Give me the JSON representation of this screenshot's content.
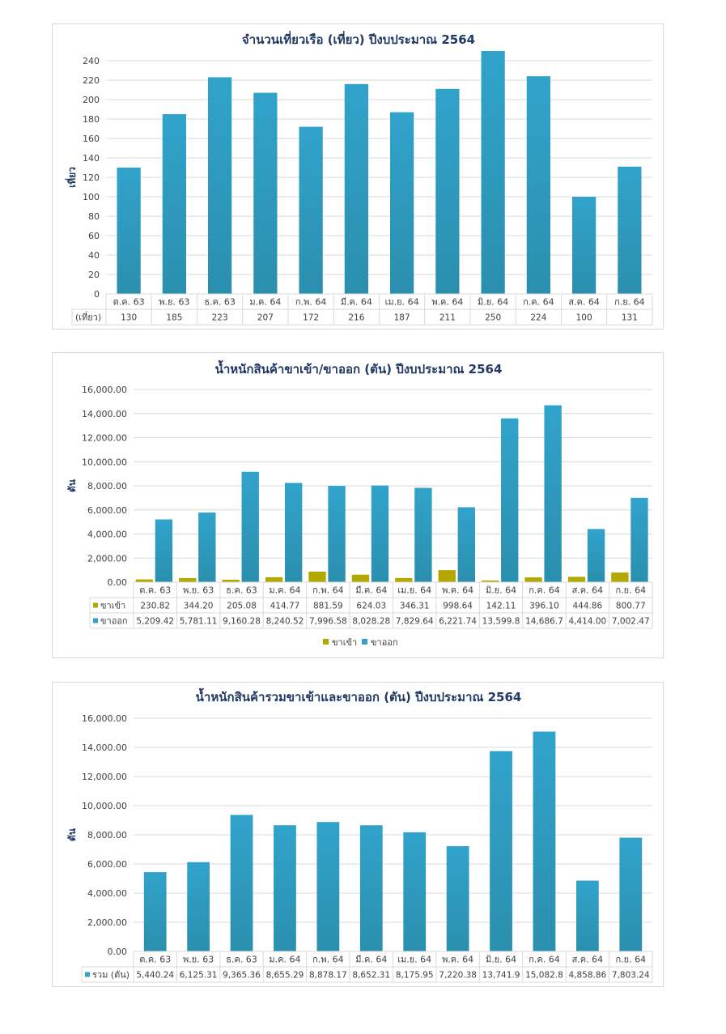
{
  "colors": {
    "blue": "#31a3cb",
    "blue_dark": "#2b8fae",
    "olive": "#b3a800",
    "title": "#1f3864",
    "grid": "#d9d9d9",
    "axis_text": "#404040"
  },
  "chart_data": [
    {
      "type": "bar",
      "title": "จำนวนเที่ยวเรือ (เที่ยว) ปีงบประมาณ 2564",
      "ylabel": "เที่ยว",
      "xlabel": "",
      "ylim": [
        0,
        240
      ],
      "yticks": [
        "0",
        "20",
        "40",
        "60",
        "80",
        "100",
        "120",
        "140",
        "160",
        "180",
        "200",
        "220",
        "240"
      ],
      "categories": [
        "ต.ค. 63",
        "พ.ย. 63",
        "ธ.ค. 63",
        "ม.ค. 64",
        "ก.พ. 64",
        "มี.ค. 64",
        "เม.ย. 64",
        "พ.ค. 64",
        "มิ.ย. 64",
        "ก.ค. 64",
        "ส.ค. 64",
        "ก.ย. 64"
      ],
      "series": [
        {
          "name": "(เที่ยว)",
          "values": [
            130,
            185,
            223,
            207,
            172,
            216,
            187,
            211,
            250,
            224,
            100,
            131
          ],
          "labels": [
            "130",
            "185",
            "223",
            "207",
            "172",
            "216",
            "187",
            "211",
            "250",
            "224",
            "100",
            "131"
          ]
        }
      ],
      "grid": true
    },
    {
      "type": "bar",
      "title": "น้ำหนักสินค้าขาเข้า/ขาออก (ตัน) ปีงบประมาณ 2564",
      "ylabel": "ตัน",
      "xlabel": "",
      "ylim": [
        0,
        16000
      ],
      "yticks": [
        "0.00",
        "2,000.00",
        "4,000.00",
        "6,000.00",
        "8,000.00",
        "10,000.00",
        "12,000.00",
        "14,000.00",
        "16,000.00"
      ],
      "categories": [
        "ต.ค. 63",
        "พ.ย. 63",
        "ธ.ค. 63",
        "ม.ค. 64",
        "ก.พ. 64",
        "มี.ค. 64",
        "เม.ย. 64",
        "พ.ค. 64",
        "มิ.ย. 64",
        "ก.ค. 64",
        "ส.ค. 64",
        "ก.ย. 64"
      ],
      "series": [
        {
          "name": "ขาเข้า",
          "values": [
            230.82,
            344.2,
            205.08,
            414.77,
            881.59,
            624.03,
            346.31,
            998.64,
            142.11,
            396.1,
            444.86,
            800.77
          ],
          "labels": [
            "230.82",
            "344.20",
            "205.08",
            "414.77",
            "881.59",
            "624.03",
            "346.31",
            "998.64",
            "142.11",
            "396.10",
            "444.86",
            "800.77"
          ]
        },
        {
          "name": "ขาออก",
          "values": [
            5209.42,
            5781.11,
            9160.28,
            8240.52,
            7996.58,
            8028.28,
            7829.64,
            6221.74,
            13599.8,
            14686.7,
            4414.0,
            7002.47
          ],
          "labels": [
            "5,209.42",
            "5,781.11",
            "9,160.28",
            "8,240.52",
            "7,996.58",
            "8,028.28",
            "7,829.64",
            "6,221.74",
            "13,599.8",
            "14,686.7",
            "4,414.00",
            "7,002.47"
          ]
        }
      ],
      "legend": "bottom",
      "grid": true
    },
    {
      "type": "bar",
      "title": "น้ำหนักสินค้ารวมขาเข้าและขาออก (ตัน) ปีงบประมาณ 2564",
      "ylabel": "ตัน",
      "xlabel": "",
      "ylim": [
        0,
        16000
      ],
      "yticks": [
        "0.00",
        "2,000.00",
        "4,000.00",
        "6,000.00",
        "8,000.00",
        "10,000.00",
        "12,000.00",
        "14,000.00",
        "16,000.00"
      ],
      "categories": [
        "ต.ค. 63",
        "พ.ย. 63",
        "ธ.ค. 63",
        "ม.ค. 64",
        "ก.พ. 64",
        "มี.ค. 64",
        "เม.ย. 64",
        "พ.ค. 64",
        "มิ.ย. 64",
        "ก.ค. 64",
        "ส.ค. 64",
        "ก.ย. 64"
      ],
      "series": [
        {
          "name": "รวม (ตัน)",
          "values": [
            5440.24,
            6125.31,
            9365.36,
            8655.29,
            8878.17,
            8652.31,
            8175.95,
            7220.38,
            13741.9,
            15082.8,
            4858.86,
            7803.24
          ],
          "labels": [
            "5,440.24",
            "6,125.31",
            "9,365.36",
            "8,655.29",
            "8,878.17",
            "8,652.31",
            "8,175.95",
            "7,220.38",
            "13,741.9",
            "15,082.8",
            "4,858.86",
            "7,803.24"
          ]
        }
      ],
      "grid": true
    }
  ]
}
